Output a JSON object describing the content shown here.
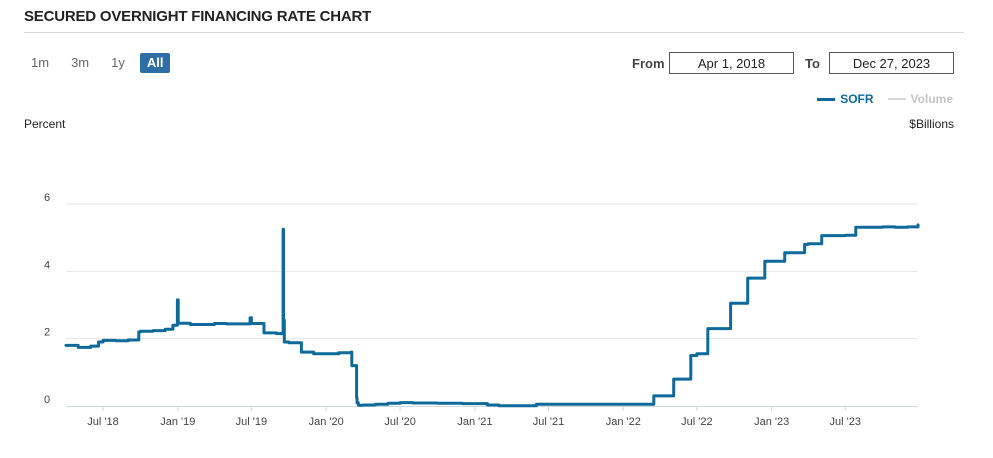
{
  "page": {
    "title": "SECURED OVERNIGHT FINANCING RATE CHART"
  },
  "range_buttons": [
    {
      "label": "1m",
      "active": false
    },
    {
      "label": "3m",
      "active": false
    },
    {
      "label": "1y",
      "active": false
    },
    {
      "label": "All",
      "active": true
    }
  ],
  "date_range": {
    "from_label": "From",
    "from_value": "Apr 1, 2018",
    "to_label": "To",
    "to_value": "Dec 27, 2023"
  },
  "legend": [
    {
      "name": "SOFR",
      "color": "#0e6a9a",
      "active": true
    },
    {
      "name": "Volume",
      "color": "#d0d0d0",
      "active": false
    }
  ],
  "colors": {
    "accent": "#2f6da6",
    "series": "#0e6a9a",
    "grid": "#e6e6e6"
  },
  "chart_data": {
    "type": "line",
    "title": "",
    "ylabel": "Percent",
    "y2label": "$Billions",
    "ylim": [
      0,
      6
    ],
    "xlim": [
      "2018-04-01",
      "2023-12-27"
    ],
    "y_ticks": [
      0,
      2,
      4,
      6
    ],
    "x_ticks": [
      {
        "label": "Jul '18",
        "date": "2018-07-01"
      },
      {
        "label": "Jan '19",
        "date": "2019-01-01"
      },
      {
        "label": "Jul '19",
        "date": "2019-07-01"
      },
      {
        "label": "Jan '20",
        "date": "2020-01-01"
      },
      {
        "label": "Jul '20",
        "date": "2020-07-01"
      },
      {
        "label": "Jan '21",
        "date": "2021-01-01"
      },
      {
        "label": "Jul '21",
        "date": "2021-07-01"
      },
      {
        "label": "Jan '22",
        "date": "2022-01-01"
      },
      {
        "label": "Jul '22",
        "date": "2022-07-01"
      },
      {
        "label": "Jan '23",
        "date": "2023-01-01"
      },
      {
        "label": "Jul '23",
        "date": "2023-07-01"
      }
    ],
    "grid": true,
    "legend_position": "top-right",
    "series": [
      {
        "name": "SOFR",
        "color": "#0e6a9a",
        "x": [
          "2018-04-01",
          "2018-05-01",
          "2018-06-01",
          "2018-06-20",
          "2018-07-01",
          "2018-08-01",
          "2018-09-01",
          "2018-09-27",
          "2018-10-01",
          "2018-11-01",
          "2018-12-01",
          "2018-12-20",
          "2018-12-31",
          "2019-01-02",
          "2019-02-01",
          "2019-03-01",
          "2019-04-01",
          "2019-05-01",
          "2019-06-01",
          "2019-06-28",
          "2019-07-01",
          "2019-08-01",
          "2019-09-01",
          "2019-09-17",
          "2019-09-18",
          "2019-09-20",
          "2019-10-01",
          "2019-11-01",
          "2019-12-01",
          "2019-12-31",
          "2020-01-02",
          "2020-02-01",
          "2020-03-02",
          "2020-03-04",
          "2020-03-16",
          "2020-03-17",
          "2020-03-20",
          "2020-04-01",
          "2020-05-01",
          "2020-06-01",
          "2020-07-01",
          "2020-08-01",
          "2020-09-01",
          "2020-10-01",
          "2020-11-01",
          "2020-12-01",
          "2021-01-01",
          "2021-02-01",
          "2021-03-01",
          "2021-04-01",
          "2021-06-01",
          "2021-09-01",
          "2021-12-01",
          "2022-01-03",
          "2022-03-01",
          "2022-03-17",
          "2022-04-01",
          "2022-05-05",
          "2022-06-01",
          "2022-06-16",
          "2022-07-01",
          "2022-07-28",
          "2022-08-01",
          "2022-09-01",
          "2022-09-22",
          "2022-10-01",
          "2022-11-03",
          "2022-12-01",
          "2022-12-15",
          "2023-01-01",
          "2023-02-02",
          "2023-03-01",
          "2023-03-23",
          "2023-04-01",
          "2023-05-04",
          "2023-06-01",
          "2023-07-01",
          "2023-07-27",
          "2023-09-01",
          "2023-10-01",
          "2023-11-01",
          "2023-12-01",
          "2023-12-27"
        ],
        "y": [
          1.8,
          1.74,
          1.78,
          1.9,
          1.95,
          1.94,
          1.96,
          2.2,
          2.22,
          2.24,
          2.28,
          2.4,
          3.15,
          2.46,
          2.42,
          2.42,
          2.45,
          2.44,
          2.44,
          2.62,
          2.45,
          2.17,
          2.15,
          5.25,
          2.55,
          1.9,
          1.88,
          1.6,
          1.55,
          1.55,
          1.55,
          1.58,
          1.6,
          1.2,
          0.25,
          0.1,
          0.02,
          0.03,
          0.05,
          0.08,
          0.1,
          0.09,
          0.09,
          0.08,
          0.08,
          0.07,
          0.07,
          0.03,
          0.01,
          0.01,
          0.05,
          0.05,
          0.05,
          0.05,
          0.05,
          0.3,
          0.3,
          0.8,
          0.8,
          1.5,
          1.55,
          2.3,
          2.3,
          2.3,
          3.05,
          3.05,
          3.8,
          3.8,
          4.3,
          4.3,
          4.55,
          4.55,
          4.8,
          4.82,
          5.06,
          5.06,
          5.07,
          5.31,
          5.31,
          5.32,
          5.31,
          5.32,
          5.38
        ]
      }
    ]
  }
}
